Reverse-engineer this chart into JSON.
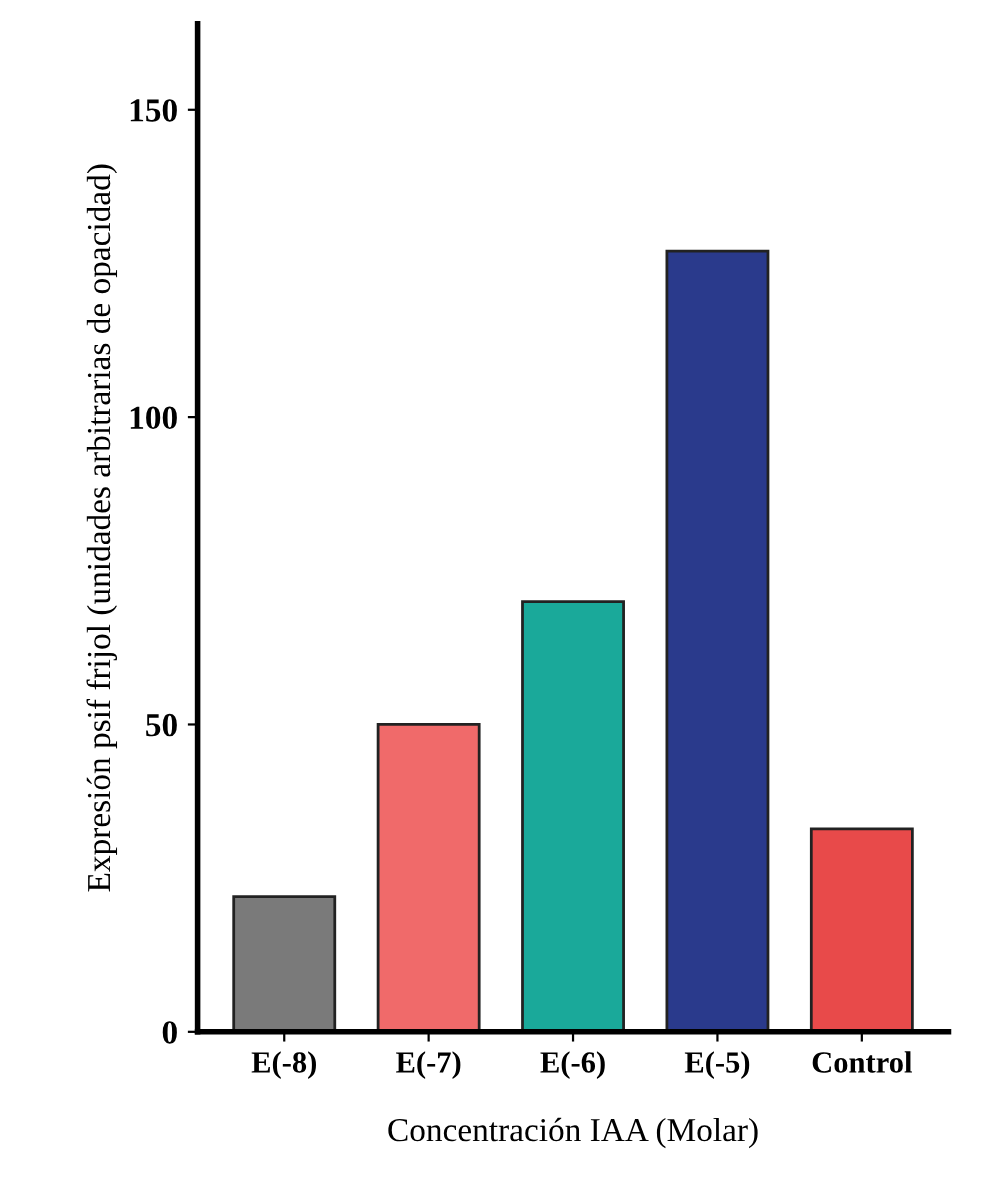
{
  "chart_data": {
    "type": "bar",
    "xlabel": "Concentración IAA (Molar)",
    "ylabel": "Expresión psif frijol (unidades arbitrarias de opacidad)",
    "categories": [
      "E(-8)",
      "E(-7)",
      "E(-6)",
      "E(-5)",
      "Control"
    ],
    "values": [
      22,
      50,
      70,
      127,
      33
    ],
    "colors": [
      "#7a7a7a",
      "#f06a6a",
      "#1aa99a",
      "#2a3a8c",
      "#e84a4a"
    ],
    "ylim": [
      0,
      164
    ],
    "yticks": [
      0,
      50,
      100,
      150
    ],
    "grid": false
  }
}
